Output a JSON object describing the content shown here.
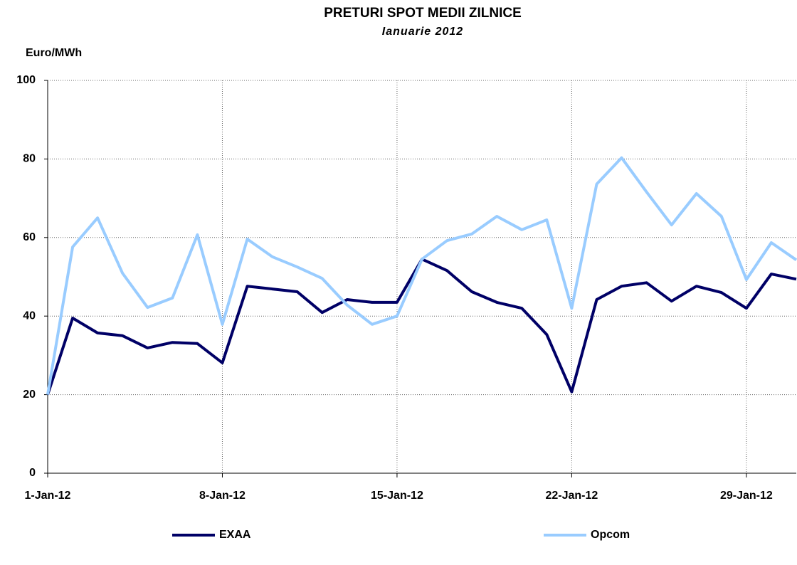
{
  "chart_data": {
    "type": "line",
    "title": "PRETURI SPOT MEDII ZILNICE",
    "subtitle": "Ianuarie 2012",
    "y_label": "Euro/MWh",
    "x": [
      "2012-01-01",
      "2012-01-02",
      "2012-01-03",
      "2012-01-04",
      "2012-01-05",
      "2012-01-06",
      "2012-01-07",
      "2012-01-08",
      "2012-01-09",
      "2012-01-10",
      "2012-01-11",
      "2012-01-12",
      "2012-01-13",
      "2012-01-14",
      "2012-01-15",
      "2012-01-16",
      "2012-01-17",
      "2012-01-18",
      "2012-01-19",
      "2012-01-20",
      "2012-01-21",
      "2012-01-22",
      "2012-01-23",
      "2012-01-24",
      "2012-01-25",
      "2012-01-26",
      "2012-01-27",
      "2012-01-28",
      "2012-01-29",
      "2012-01-30",
      "2012-01-31"
    ],
    "series": [
      {
        "name": "EXAA",
        "color": "#000066",
        "values": [
          20,
          39.5,
          35.7,
          35,
          31.9,
          33.3,
          33,
          28.1,
          47.6,
          46.9,
          46.2,
          40.9,
          44.2,
          43.5,
          43.5,
          54.5,
          51.6,
          46.2,
          43.5,
          42,
          35.3,
          20.7,
          44.2,
          47.6,
          48.5,
          43.8,
          47.6,
          46,
          42,
          50.7,
          49.4
        ]
      },
      {
        "name": "Opcom",
        "color": "#99ccff",
        "values": [
          20,
          57.6,
          65,
          50.9,
          42.2,
          44.6,
          60.7,
          37.9,
          59.6,
          55.1,
          52.5,
          49.6,
          42.8,
          37.9,
          40,
          54.5,
          59.2,
          60.9,
          65.4,
          62,
          64.5,
          42,
          73.6,
          80.3,
          71.6,
          63.2,
          71.2,
          65.4,
          49.3,
          58.7,
          54.3
        ]
      }
    ],
    "xlim": [
      "2012-01-01",
      "2012-01-31"
    ],
    "xticks": [
      {
        "value": "2012-01-01",
        "label": "1-Jan-12"
      },
      {
        "value": "2012-01-08",
        "label": "8-Jan-12"
      },
      {
        "value": "2012-01-15",
        "label": "15-Jan-12"
      },
      {
        "value": "2012-01-22",
        "label": "22-Jan-12"
      },
      {
        "value": "2012-01-29",
        "label": "29-Jan-12"
      }
    ],
    "ylim": [
      0,
      100
    ],
    "yticks": [
      0,
      20,
      40,
      60,
      80,
      100
    ],
    "grid": true
  }
}
